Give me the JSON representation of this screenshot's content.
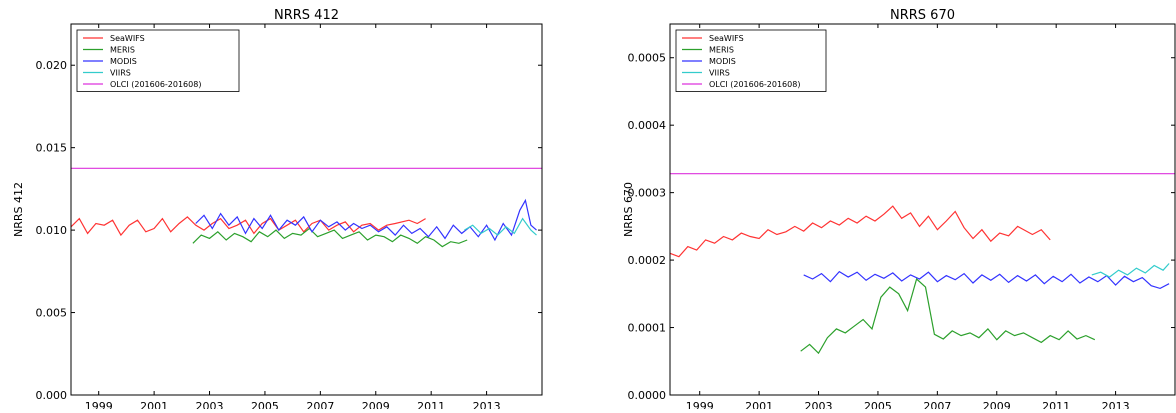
{
  "chart_data": [
    {
      "type": "line",
      "title": "NRRS 412",
      "xlabel": "",
      "ylabel": "NRRS 412",
      "xlim": [
        1998,
        2015
      ],
      "ylim": [
        0.0,
        0.0225
      ],
      "xticks": [
        "1999",
        "2001",
        "2003",
        "2005",
        "2007",
        "2009",
        "2011",
        "2013"
      ],
      "yticks": [
        "0.000",
        "0.005",
        "0.010",
        "0.015",
        "0.020"
      ],
      "grid": false,
      "legend_position": "top-left",
      "series": [
        {
          "name": "SeaWIFS",
          "color": "#ff3333",
          "x": [
            1998.0,
            1998.3,
            1998.6,
            1998.9,
            1999.2,
            1999.5,
            1999.8,
            2000.1,
            2000.4,
            2000.7,
            2001.0,
            2001.3,
            2001.6,
            2001.9,
            2002.2,
            2002.5,
            2002.8,
            2003.1,
            2003.4,
            2003.7,
            2004.0,
            2004.3,
            2004.6,
            2004.9,
            2005.2,
            2005.5,
            2005.8,
            2006.1,
            2006.4,
            2006.7,
            2007.0,
            2007.3,
            2007.6,
            2007.9,
            2008.2,
            2008.5,
            2008.8,
            2009.1,
            2009.4,
            2009.7,
            2010.2,
            2010.5,
            2010.8
          ],
          "y": [
            0.0102,
            0.0107,
            0.0098,
            0.0104,
            0.0103,
            0.0106,
            0.0097,
            0.0103,
            0.0106,
            0.0099,
            0.0101,
            0.0107,
            0.0099,
            0.0104,
            0.0108,
            0.0103,
            0.01,
            0.0104,
            0.0107,
            0.0101,
            0.0103,
            0.0106,
            0.0098,
            0.0104,
            0.0107,
            0.01,
            0.0103,
            0.0106,
            0.0099,
            0.0104,
            0.0106,
            0.01,
            0.0103,
            0.0105,
            0.0099,
            0.0103,
            0.0104,
            0.01,
            0.0103,
            0.0104,
            0.0106,
            0.0104,
            0.0107
          ]
        },
        {
          "name": "MERIS",
          "color": "#2ca02c",
          "x": [
            2002.4,
            2002.7,
            2003.0,
            2003.3,
            2003.6,
            2003.9,
            2004.2,
            2004.5,
            2004.8,
            2005.1,
            2005.4,
            2005.7,
            2006.0,
            2006.3,
            2006.6,
            2006.9,
            2007.2,
            2007.5,
            2007.8,
            2008.1,
            2008.4,
            2008.7,
            2009.0,
            2009.3,
            2009.6,
            2009.9,
            2010.2,
            2010.5,
            2010.8,
            2011.1,
            2011.4,
            2011.7,
            2012.0,
            2012.3
          ],
          "y": [
            0.0092,
            0.0097,
            0.0095,
            0.0099,
            0.0094,
            0.0098,
            0.0096,
            0.0093,
            0.0099,
            0.0096,
            0.01,
            0.0095,
            0.0098,
            0.0097,
            0.0101,
            0.0096,
            0.0098,
            0.01,
            0.0095,
            0.0097,
            0.0099,
            0.0094,
            0.0097,
            0.0096,
            0.0093,
            0.0097,
            0.0095,
            0.0092,
            0.0096,
            0.0094,
            0.009,
            0.0093,
            0.0092,
            0.0094
          ]
        },
        {
          "name": "MODIS",
          "color": "#3333ff",
          "x": [
            2002.5,
            2002.8,
            2003.1,
            2003.4,
            2003.7,
            2004.0,
            2004.3,
            2004.6,
            2004.9,
            2005.2,
            2005.5,
            2005.8,
            2006.1,
            2006.4,
            2006.7,
            2007.0,
            2007.3,
            2007.6,
            2007.9,
            2008.2,
            2008.5,
            2008.8,
            2009.1,
            2009.4,
            2009.7,
            2010.0,
            2010.3,
            2010.6,
            2010.9,
            2011.2,
            2011.5,
            2011.8,
            2012.1,
            2012.4,
            2012.7,
            2013.0,
            2013.3,
            2013.6,
            2013.9,
            2014.2,
            2014.4,
            2014.6,
            2014.8
          ],
          "y": [
            0.0104,
            0.0109,
            0.0101,
            0.011,
            0.0103,
            0.0108,
            0.0098,
            0.0107,
            0.0101,
            0.0109,
            0.01,
            0.0106,
            0.0103,
            0.0108,
            0.0099,
            0.0106,
            0.0102,
            0.0105,
            0.01,
            0.0104,
            0.0101,
            0.0103,
            0.0099,
            0.0102,
            0.0097,
            0.0103,
            0.0098,
            0.0101,
            0.0096,
            0.0102,
            0.0095,
            0.0103,
            0.0098,
            0.0102,
            0.0096,
            0.0103,
            0.0094,
            0.0104,
            0.0097,
            0.0112,
            0.0118,
            0.0103,
            0.01
          ]
        },
        {
          "name": "VIIRS",
          "color": "#33cccc",
          "x": [
            2012.2,
            2012.5,
            2012.8,
            2013.1,
            2013.4,
            2013.7,
            2014.0,
            2014.3,
            2014.6,
            2014.8
          ],
          "y": [
            0.01,
            0.0103,
            0.0098,
            0.0101,
            0.0097,
            0.0102,
            0.0098,
            0.0107,
            0.01,
            0.0097
          ]
        },
        {
          "name": "OLCI (201606-201608)",
          "color": "#dd33dd",
          "x": [
            1998,
            2015
          ],
          "y": [
            0.01375,
            0.01375
          ]
        }
      ]
    },
    {
      "type": "line",
      "title": "NRRS 670",
      "xlabel": "",
      "ylabel": "NRRS 670",
      "xlim": [
        1998,
        2015
      ],
      "ylim": [
        0.0,
        0.00055
      ],
      "xticks": [
        "1999",
        "2001",
        "2003",
        "2005",
        "2007",
        "2009",
        "2011",
        "2013"
      ],
      "yticks": [
        "0.0000",
        "0.0001",
        "0.0002",
        "0.0003",
        "0.0004",
        "0.0005"
      ],
      "grid": false,
      "legend_position": "top-left",
      "series": [
        {
          "name": "SeaWIFS",
          "color": "#ff3333",
          "x": [
            1998.0,
            1998.3,
            1998.6,
            1998.9,
            1999.2,
            1999.5,
            1999.8,
            2000.1,
            2000.4,
            2000.7,
            2001.0,
            2001.3,
            2001.6,
            2001.9,
            2002.2,
            2002.5,
            2002.8,
            2003.1,
            2003.4,
            2003.7,
            2004.0,
            2004.3,
            2004.6,
            2004.9,
            2005.2,
            2005.5,
            2005.8,
            2006.1,
            2006.4,
            2006.7,
            2007.0,
            2007.3,
            2007.6,
            2007.9,
            2008.2,
            2008.5,
            2008.8,
            2009.1,
            2009.4,
            2009.7,
            2010.2,
            2010.5,
            2010.8
          ],
          "y": [
            0.00021,
            0.000205,
            0.00022,
            0.000215,
            0.00023,
            0.000225,
            0.000235,
            0.00023,
            0.00024,
            0.000235,
            0.000232,
            0.000245,
            0.000238,
            0.000242,
            0.00025,
            0.000243,
            0.000255,
            0.000248,
            0.000258,
            0.000252,
            0.000262,
            0.000255,
            0.000265,
            0.000258,
            0.000268,
            0.00028,
            0.000262,
            0.00027,
            0.00025,
            0.000265,
            0.000245,
            0.000258,
            0.000272,
            0.000248,
            0.000232,
            0.000245,
            0.000228,
            0.00024,
            0.000236,
            0.00025,
            0.000238,
            0.000245,
            0.00023
          ]
        },
        {
          "name": "MERIS",
          "color": "#2ca02c",
          "x": [
            2002.4,
            2002.7,
            2003.0,
            2003.3,
            2003.6,
            2003.9,
            2004.2,
            2004.5,
            2004.8,
            2005.1,
            2005.4,
            2005.7,
            2006.0,
            2006.3,
            2006.6,
            2006.9,
            2007.2,
            2007.5,
            2007.8,
            2008.1,
            2008.4,
            2008.7,
            2009.0,
            2009.3,
            2009.6,
            2009.9,
            2010.2,
            2010.5,
            2010.8,
            2011.1,
            2011.4,
            2011.7,
            2012.0,
            2012.3
          ],
          "y": [
            6.5e-05,
            7.5e-05,
            6.2e-05,
            8.5e-05,
            9.8e-05,
            9.2e-05,
            0.000102,
            0.000112,
            9.8e-05,
            0.000145,
            0.00016,
            0.00015,
            0.000125,
            0.000172,
            0.00016,
            9e-05,
            8.3e-05,
            9.5e-05,
            8.8e-05,
            9.2e-05,
            8.5e-05,
            9.8e-05,
            8.2e-05,
            9.5e-05,
            8.8e-05,
            9.2e-05,
            8.5e-05,
            7.8e-05,
            8.8e-05,
            8.2e-05,
            9.5e-05,
            8.3e-05,
            8.8e-05,
            8.2e-05
          ]
        },
        {
          "name": "MODIS",
          "color": "#3333ff",
          "x": [
            2002.5,
            2002.8,
            2003.1,
            2003.4,
            2003.7,
            2004.0,
            2004.3,
            2004.6,
            2004.9,
            2005.2,
            2005.5,
            2005.8,
            2006.1,
            2006.4,
            2006.7,
            2007.0,
            2007.3,
            2007.6,
            2007.9,
            2008.2,
            2008.5,
            2008.8,
            2009.1,
            2009.4,
            2009.7,
            2010.0,
            2010.3,
            2010.6,
            2010.9,
            2011.2,
            2011.5,
            2011.8,
            2012.1,
            2012.4,
            2012.7,
            2013.0,
            2013.3,
            2013.6,
            2013.9,
            2014.2,
            2014.5,
            2014.8
          ],
          "y": [
            0.000178,
            0.000172,
            0.00018,
            0.000168,
            0.000183,
            0.000175,
            0.000182,
            0.00017,
            0.000179,
            0.000173,
            0.000181,
            0.000169,
            0.000178,
            0.000172,
            0.000182,
            0.000168,
            0.000177,
            0.000171,
            0.00018,
            0.000166,
            0.000178,
            0.00017,
            0.000179,
            0.000167,
            0.000177,
            0.000169,
            0.000178,
            0.000165,
            0.000176,
            0.000168,
            0.000179,
            0.000166,
            0.000175,
            0.000168,
            0.000177,
            0.000163,
            0.000176,
            0.000168,
            0.000174,
            0.000162,
            0.000158,
            0.000165
          ]
        },
        {
          "name": "VIIRS",
          "color": "#33cccc",
          "x": [
            2012.2,
            2012.5,
            2012.8,
            2013.1,
            2013.4,
            2013.7,
            2014.0,
            2014.3,
            2014.6,
            2014.8
          ],
          "y": [
            0.000178,
            0.000182,
            0.000175,
            0.000185,
            0.000178,
            0.000188,
            0.000181,
            0.000192,
            0.000185,
            0.000195
          ]
        },
        {
          "name": "OLCI (201606-201608)",
          "color": "#dd33dd",
          "x": [
            1998,
            2015
          ],
          "y": [
            0.000328,
            0.000328
          ]
        }
      ]
    }
  ]
}
